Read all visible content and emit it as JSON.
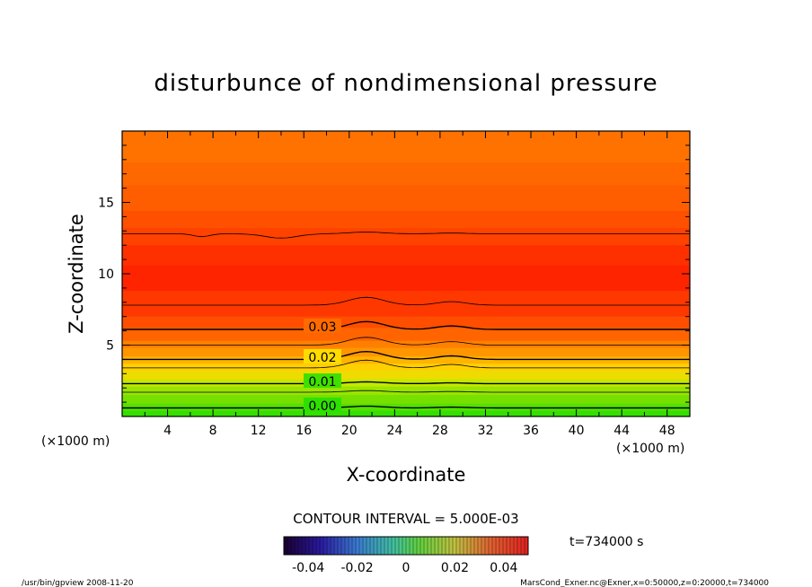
{
  "chart_data": {
    "type": "heatmap",
    "title": "disturbunce of nondimensional pressure",
    "xlabel": "X-coordinate",
    "ylabel": "Z-coordinate",
    "x_unit": "(×1000 m)",
    "z_unit": "(×1000 m)",
    "xlim": [
      0,
      50
    ],
    "ylim": [
      0,
      20
    ],
    "x_ticks": [
      "4",
      "8",
      "12",
      "16",
      "20",
      "24",
      "28",
      "32",
      "36",
      "40",
      "44",
      "48"
    ],
    "y_ticks": [
      "5",
      "10",
      "15"
    ],
    "contour_interval_label": "CONTOUR INTERVAL = 5.000E-03",
    "contour_labels": [
      "0.00",
      "0.01",
      "0.02",
      "0.03"
    ],
    "contours": [
      {
        "level": 0.0,
        "z": 0.6
      },
      {
        "level": 0.005,
        "z": 1.7
      },
      {
        "level": 0.01,
        "z": 2.3
      },
      {
        "level": 0.015,
        "z": 3.4
      },
      {
        "level": 0.02,
        "z": 4.0
      },
      {
        "level": 0.025,
        "z": 5.0
      },
      {
        "level": 0.03,
        "z": 6.1
      },
      {
        "level": 0.035,
        "z": 7.8
      },
      {
        "level": 0.035,
        "z": 12.8
      }
    ],
    "colorbar_ticks": [
      "-0.04",
      "-0.02",
      "0",
      "0.02",
      "0.04"
    ],
    "colorbar_range": [
      -0.05,
      0.05
    ],
    "time_label": "t=734000 s",
    "footer_left": "/usr/bin/gpview   2008-11-20",
    "footer_right": "MarsCond_Exner.nc@Exner,x=0:50000,z=0:20000,t=734000",
    "colors": {
      "green": "#2ee000",
      "yellow": "#ffd000",
      "orange": "#ff7a00",
      "red": "#ff2a00"
    }
  }
}
